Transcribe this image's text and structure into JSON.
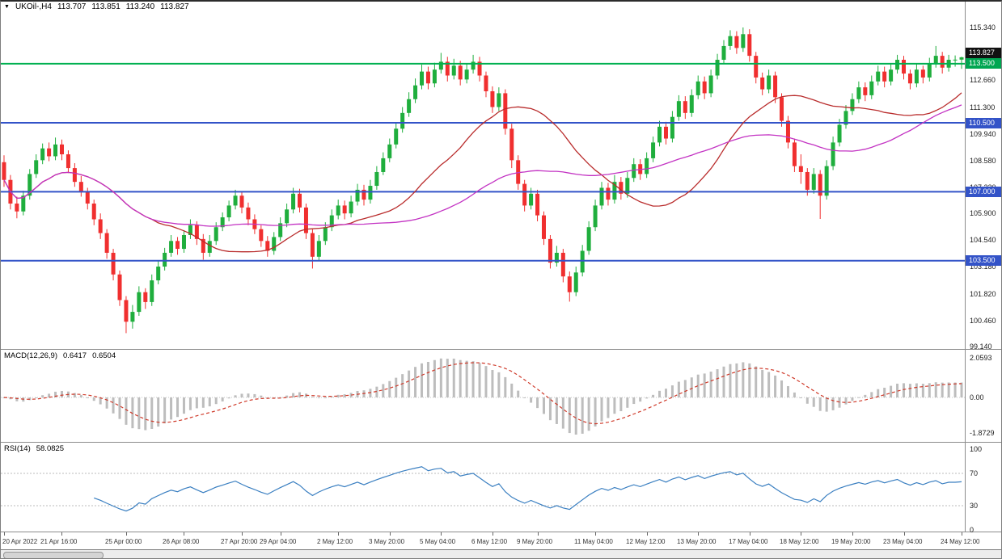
{
  "header": {
    "expand_icon": "▼",
    "symbol": "UKOil-,H4",
    "open": "113.707",
    "high": "113.851",
    "low": "113.240",
    "close": "113.827"
  },
  "colors": {
    "background": "#ffffff",
    "candle_up": "#1fae3d",
    "candle_down": "#f02f2f",
    "ma_fast": "#b92c2c",
    "ma_slow": "#c333c3",
    "macd_bar": "#bdbdbd",
    "macd_signal": "#cf3a2a",
    "rsi_line": "#3a7fc1",
    "hline_blue": "#3353c8",
    "hline_green": "#00b050",
    "badge_black": "#111111",
    "badge_green": "#00a651",
    "badge_blue": "#3353c8"
  },
  "price_badges": [
    {
      "text": "113.827",
      "value": 113.827,
      "type": "current-price",
      "bg": "#111111"
    },
    {
      "text": "113.500",
      "value": 113.5,
      "type": "level-line",
      "bg": "#00a651"
    },
    {
      "text": "110.500",
      "value": 110.5,
      "type": "level-line",
      "bg": "#3353c8"
    },
    {
      "text": "107.000",
      "value": 107.0,
      "type": "level-line",
      "bg": "#3353c8"
    },
    {
      "text": "103.500",
      "value": 103.5,
      "type": "level-line",
      "bg": "#3353c8"
    }
  ],
  "hlines": [
    {
      "value": 113.5,
      "color": "#00b050"
    },
    {
      "value": 110.5,
      "color": "#3353c8"
    },
    {
      "value": 107.0,
      "color": "#3353c8"
    },
    {
      "value": 103.5,
      "color": "#3353c8"
    }
  ],
  "chart_data": [
    {
      "type": "candlestick",
      "title": "UKOil-,H4",
      "symbol": "UKOil-",
      "timeframe": "H4",
      "y_axis": {
        "min": 99.14,
        "max": 115.34,
        "ticks": [
          115.34,
          113.98,
          112.66,
          111.3,
          109.94,
          108.58,
          107.22,
          105.9,
          104.54,
          103.18,
          101.82,
          100.46,
          99.14
        ]
      },
      "overlays": [
        {
          "name": "ma-fast",
          "type": "sma",
          "period": 24,
          "color": "#b92c2c"
        },
        {
          "name": "ma-slow",
          "type": "sma",
          "period": 55,
          "color": "#c333c3"
        }
      ],
      "x_labels": [
        {
          "text": "20 Apr 2022",
          "index": 0
        },
        {
          "text": "21 Apr 16:00",
          "index": 9
        },
        {
          "text": "25 Apr 00:00",
          "index": 19
        },
        {
          "text": "26 Apr 08:00",
          "index": 28
        },
        {
          "text": "27 Apr 20:00",
          "index": 37
        },
        {
          "text": "29 Apr 04:00",
          "index": 43
        },
        {
          "text": "2 May 12:00",
          "index": 52
        },
        {
          "text": "3 May 20:00",
          "index": 60
        },
        {
          "text": "5 May 04:00",
          "index": 68
        },
        {
          "text": "6 May 12:00",
          "index": 76
        },
        {
          "text": "9 May 20:00",
          "index": 83
        },
        {
          "text": "11 May 04:00",
          "index": 92
        },
        {
          "text": "12 May 12:00",
          "index": 100
        },
        {
          "text": "13 May 20:00",
          "index": 108
        },
        {
          "text": "17 May 04:00",
          "index": 116
        },
        {
          "text": "18 May 12:00",
          "index": 124
        },
        {
          "text": "19 May 20:00",
          "index": 132
        },
        {
          "text": "23 May 04:00",
          "index": 140
        },
        {
          "text": "24 May 12:00",
          "index": 149
        }
      ],
      "candles": [
        [
          108.5,
          108.85,
          107.25,
          107.6
        ],
        [
          107.6,
          107.85,
          106.1,
          106.4
        ],
        [
          106.4,
          106.75,
          105.65,
          106.0
        ],
        [
          106.0,
          107.05,
          105.8,
          106.8
        ],
        [
          106.8,
          108.15,
          106.6,
          107.9
        ],
        [
          107.9,
          108.9,
          107.7,
          108.6
        ],
        [
          108.6,
          109.45,
          108.4,
          109.2
        ],
        [
          109.2,
          109.5,
          108.55,
          108.8
        ],
        [
          108.8,
          109.75,
          108.6,
          109.4
        ],
        [
          109.4,
          109.65,
          108.6,
          108.9
        ],
        [
          108.9,
          109.1,
          107.95,
          108.2
        ],
        [
          108.2,
          108.45,
          107.25,
          107.5
        ],
        [
          107.5,
          107.8,
          106.75,
          107.0
        ],
        [
          107.0,
          107.2,
          106.1,
          106.4
        ],
        [
          106.4,
          106.6,
          105.3,
          105.6
        ],
        [
          105.6,
          105.9,
          104.6,
          104.9
        ],
        [
          104.9,
          105.1,
          103.6,
          103.9
        ],
        [
          103.9,
          104.1,
          102.5,
          102.8
        ],
        [
          102.8,
          103.0,
          101.2,
          101.5
        ],
        [
          101.5,
          101.7,
          99.82,
          100.4
        ],
        [
          100.4,
          101.25,
          100.05,
          100.9
        ],
        [
          100.9,
          102.2,
          100.7,
          101.9
        ],
        [
          101.9,
          102.1,
          101.05,
          101.4
        ],
        [
          101.4,
          102.8,
          101.2,
          102.5
        ],
        [
          102.5,
          103.5,
          102.3,
          103.2
        ],
        [
          103.2,
          104.15,
          103.0,
          103.9
        ],
        [
          103.9,
          104.8,
          103.7,
          104.5
        ],
        [
          104.5,
          104.7,
          103.8,
          104.1
        ],
        [
          104.1,
          105.05,
          103.9,
          104.8
        ],
        [
          104.8,
          105.6,
          104.6,
          105.3
        ],
        [
          105.3,
          105.5,
          104.3,
          104.6
        ],
        [
          104.6,
          104.85,
          103.55,
          103.9
        ],
        [
          103.9,
          104.8,
          103.7,
          104.5
        ],
        [
          104.5,
          105.45,
          104.3,
          105.2
        ],
        [
          105.2,
          105.95,
          105.0,
          105.7
        ],
        [
          105.7,
          106.55,
          105.5,
          106.3
        ],
        [
          106.3,
          107.1,
          106.1,
          106.8
        ],
        [
          106.8,
          107.0,
          105.9,
          106.2
        ],
        [
          106.2,
          106.45,
          105.3,
          105.6
        ],
        [
          105.6,
          105.85,
          104.85,
          105.1
        ],
        [
          105.1,
          105.3,
          104.2,
          104.5
        ],
        [
          104.5,
          104.75,
          103.7,
          104.0
        ],
        [
          104.0,
          104.95,
          103.8,
          104.7
        ],
        [
          104.7,
          105.7,
          104.5,
          105.4
        ],
        [
          105.4,
          106.4,
          105.2,
          106.1
        ],
        [
          106.1,
          107.2,
          105.9,
          106.9
        ],
        [
          106.9,
          107.15,
          105.95,
          106.2
        ],
        [
          106.2,
          106.4,
          104.6,
          104.9
        ],
        [
          104.9,
          105.1,
          103.1,
          103.7
        ],
        [
          103.7,
          104.8,
          103.5,
          104.5
        ],
        [
          104.5,
          105.45,
          104.3,
          105.2
        ],
        [
          105.2,
          106.1,
          105.0,
          105.8
        ],
        [
          105.8,
          106.6,
          105.6,
          106.3
        ],
        [
          106.3,
          106.55,
          105.6,
          105.9
        ],
        [
          105.9,
          106.8,
          105.7,
          106.5
        ],
        [
          106.5,
          107.4,
          106.3,
          107.1
        ],
        [
          107.1,
          107.35,
          106.3,
          106.6
        ],
        [
          106.6,
          107.6,
          106.4,
          107.3
        ],
        [
          107.3,
          108.3,
          107.1,
          108.0
        ],
        [
          108.0,
          109.0,
          107.85,
          108.7
        ],
        [
          108.7,
          109.7,
          108.5,
          109.4
        ],
        [
          109.4,
          110.5,
          109.2,
          110.2
        ],
        [
          110.2,
          111.3,
          110.0,
          111.0
        ],
        [
          111.0,
          112.05,
          110.8,
          111.7
        ],
        [
          111.7,
          112.75,
          111.5,
          112.4
        ],
        [
          112.4,
          113.45,
          112.2,
          113.1
        ],
        [
          113.1,
          113.35,
          112.2,
          112.5
        ],
        [
          112.5,
          113.55,
          112.3,
          113.2
        ],
        [
          113.2,
          114.05,
          113.0,
          113.6
        ],
        [
          113.6,
          113.85,
          112.6,
          112.9
        ],
        [
          112.9,
          113.75,
          112.7,
          113.4
        ],
        [
          113.4,
          113.65,
          112.4,
          112.7
        ],
        [
          112.7,
          113.5,
          112.5,
          113.2
        ],
        [
          113.2,
          113.95,
          113.0,
          113.6
        ],
        [
          113.6,
          113.85,
          112.6,
          112.9
        ],
        [
          112.9,
          113.1,
          111.8,
          112.1
        ],
        [
          112.1,
          112.35,
          111.0,
          111.3
        ],
        [
          111.3,
          112.3,
          111.1,
          112.0
        ],
        [
          112.0,
          112.2,
          109.9,
          110.2
        ],
        [
          110.2,
          110.45,
          108.2,
          108.6
        ],
        [
          108.6,
          108.85,
          107.1,
          107.4
        ],
        [
          107.4,
          107.6,
          106.0,
          106.3
        ],
        [
          106.3,
          107.2,
          106.1,
          106.9
        ],
        [
          106.9,
          107.1,
          105.5,
          105.8
        ],
        [
          105.8,
          106.0,
          104.3,
          104.6
        ],
        [
          104.6,
          104.8,
          103.1,
          103.4
        ],
        [
          103.4,
          104.25,
          103.2,
          103.9
        ],
        [
          103.9,
          104.1,
          102.4,
          102.7
        ],
        [
          102.7,
          102.95,
          101.42,
          101.9
        ],
        [
          101.9,
          103.2,
          101.7,
          102.9
        ],
        [
          102.9,
          104.3,
          102.7,
          104.0
        ],
        [
          104.0,
          105.5,
          103.8,
          105.2
        ],
        [
          105.2,
          106.6,
          105.0,
          106.3
        ],
        [
          106.3,
          107.5,
          106.1,
          107.2
        ],
        [
          107.2,
          107.45,
          106.3,
          106.6
        ],
        [
          106.6,
          107.85,
          106.4,
          107.5
        ],
        [
          107.5,
          107.75,
          106.6,
          106.9
        ],
        [
          106.9,
          108.0,
          106.7,
          107.7
        ],
        [
          107.7,
          108.7,
          107.5,
          108.4
        ],
        [
          108.4,
          108.65,
          107.6,
          107.9
        ],
        [
          107.9,
          109.0,
          107.7,
          108.7
        ],
        [
          108.7,
          109.8,
          108.5,
          109.5
        ],
        [
          109.5,
          110.6,
          109.3,
          110.3
        ],
        [
          110.3,
          110.55,
          109.4,
          109.7
        ],
        [
          109.7,
          111.1,
          109.5,
          110.8
        ],
        [
          110.8,
          111.9,
          110.6,
          111.6
        ],
        [
          111.6,
          111.85,
          110.7,
          111.0
        ],
        [
          111.0,
          112.2,
          110.8,
          111.9
        ],
        [
          111.9,
          112.9,
          111.7,
          112.6
        ],
        [
          112.6,
          112.85,
          111.7,
          112.0
        ],
        [
          112.0,
          113.2,
          111.8,
          112.9
        ],
        [
          112.9,
          114.0,
          112.7,
          113.7
        ],
        [
          113.7,
          114.7,
          113.5,
          114.4
        ],
        [
          114.4,
          115.2,
          114.2,
          114.9
        ],
        [
          114.9,
          115.15,
          114.0,
          114.3
        ],
        [
          114.3,
          115.34,
          114.1,
          115.0
        ],
        [
          115.0,
          115.25,
          113.6,
          113.9
        ],
        [
          113.9,
          114.1,
          112.5,
          112.8
        ],
        [
          112.8,
          113.05,
          111.9,
          112.2
        ],
        [
          112.2,
          113.2,
          112.0,
          112.9
        ],
        [
          112.9,
          113.1,
          111.5,
          111.8
        ],
        [
          111.8,
          112.0,
          110.3,
          110.6
        ],
        [
          110.6,
          110.85,
          109.2,
          109.5
        ],
        [
          109.5,
          109.7,
          108.0,
          108.3
        ],
        [
          108.3,
          108.9,
          107.4,
          108.0
        ],
        [
          108.0,
          108.2,
          106.8,
          107.1
        ],
        [
          107.1,
          108.2,
          106.9,
          107.9
        ],
        [
          107.9,
          108.1,
          105.62,
          106.8
        ],
        [
          106.8,
          108.6,
          106.6,
          108.3
        ],
        [
          108.3,
          109.8,
          108.1,
          109.5
        ],
        [
          109.5,
          110.7,
          109.3,
          110.4
        ],
        [
          110.4,
          111.4,
          110.2,
          111.1
        ],
        [
          111.1,
          112.0,
          110.9,
          111.7
        ],
        [
          111.7,
          112.6,
          111.5,
          112.3
        ],
        [
          112.3,
          112.55,
          111.6,
          111.9
        ],
        [
          111.9,
          112.9,
          111.7,
          112.6
        ],
        [
          112.6,
          113.4,
          112.4,
          113.1
        ],
        [
          113.1,
          113.35,
          112.3,
          112.6
        ],
        [
          112.6,
          113.5,
          112.4,
          113.2
        ],
        [
          113.2,
          113.95,
          113.0,
          113.7
        ],
        [
          113.7,
          113.9,
          112.7,
          113.0
        ],
        [
          113.0,
          113.2,
          112.2,
          112.5
        ],
        [
          112.5,
          113.5,
          112.3,
          113.2
        ],
        [
          113.2,
          113.4,
          112.5,
          112.8
        ],
        [
          112.8,
          113.8,
          112.6,
          113.5
        ],
        [
          113.5,
          114.4,
          113.3,
          113.9
        ],
        [
          113.9,
          114.1,
          113.0,
          113.3
        ],
        [
          113.3,
          113.95,
          113.1,
          113.7
        ],
        [
          113.7,
          113.92,
          113.35,
          113.707
        ],
        [
          113.707,
          113.851,
          113.24,
          113.827
        ]
      ]
    },
    {
      "type": "macd",
      "label": "MACD(12,26,9)",
      "value_main": "0.6417",
      "value_signal": "0.6504",
      "params": [
        12,
        26,
        9
      ],
      "y_ticks": [
        {
          "text": "2.0593",
          "value": 2.0593
        },
        {
          "text": "0.00",
          "value": 0
        },
        {
          "text": "-1.8729",
          "value": -1.8729
        }
      ]
    },
    {
      "type": "rsi",
      "label": "RSI(14)",
      "value": "58.0825",
      "period": 14,
      "levels": [
        70,
        30
      ],
      "y_ticks": [
        {
          "text": "100",
          "value": 100
        },
        {
          "text": "70",
          "value": 70
        },
        {
          "text": "30",
          "value": 30
        },
        {
          "text": "0",
          "value": 0
        }
      ]
    }
  ]
}
